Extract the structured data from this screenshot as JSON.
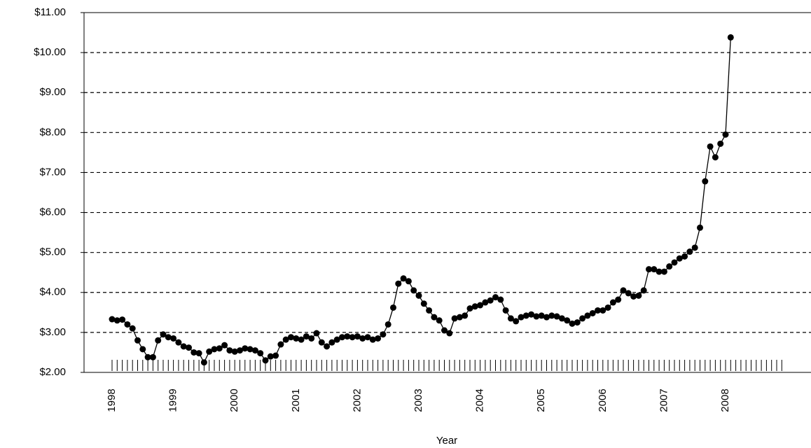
{
  "chart_data": {
    "type": "line",
    "x_label": "Year",
    "categories": [
      "1998",
      null,
      null,
      null,
      null,
      null,
      null,
      null,
      null,
      null,
      null,
      null,
      "1999",
      null,
      null,
      null,
      null,
      null,
      null,
      null,
      null,
      null,
      null,
      null,
      "2000",
      null,
      null,
      null,
      null,
      null,
      null,
      null,
      null,
      null,
      null,
      null,
      "2001",
      null,
      null,
      null,
      null,
      null,
      null,
      null,
      null,
      null,
      null,
      null,
      "2002",
      null,
      null,
      null,
      null,
      null,
      null,
      null,
      null,
      null,
      null,
      null,
      "2003",
      null,
      null,
      null,
      null,
      null,
      null,
      null,
      null,
      null,
      null,
      null,
      "2004",
      null,
      null,
      null,
      null,
      null,
      null,
      null,
      null,
      null,
      null,
      null,
      "2005",
      null,
      null,
      null,
      null,
      null,
      null,
      null,
      null,
      null,
      null,
      null,
      "2006",
      null,
      null,
      null,
      null,
      null,
      null,
      null,
      null,
      null,
      null,
      null,
      "2007",
      null,
      null,
      null,
      null,
      null,
      null,
      null,
      null,
      null,
      null,
      null,
      "2008",
      null,
      null,
      null,
      null,
      null,
      null,
      null,
      null,
      null,
      null,
      null
    ],
    "values": [
      3.33,
      3.3,
      3.32,
      3.2,
      3.1,
      2.8,
      2.58,
      2.38,
      2.38,
      2.8,
      2.95,
      2.88,
      2.85,
      2.75,
      2.65,
      2.62,
      2.5,
      2.48,
      2.25,
      2.52,
      2.58,
      2.6,
      2.68,
      2.55,
      2.52,
      2.55,
      2.6,
      2.58,
      2.55,
      2.48,
      2.3,
      2.4,
      2.42,
      2.7,
      2.82,
      2.88,
      2.85,
      2.82,
      2.9,
      2.85,
      2.98,
      2.75,
      2.65,
      2.75,
      2.82,
      2.88,
      2.9,
      2.88,
      2.9,
      2.85,
      2.88,
      2.82,
      2.85,
      2.95,
      3.2,
      3.62,
      4.22,
      4.35,
      4.28,
      4.05,
      3.92,
      3.72,
      3.55,
      3.38,
      3.3,
      3.05,
      2.98,
      3.35,
      3.38,
      3.42,
      3.6,
      3.65,
      3.68,
      3.75,
      3.8,
      3.88,
      3.82,
      3.55,
      3.35,
      3.28,
      3.38,
      3.42,
      3.45,
      3.4,
      3.42,
      3.38,
      3.42,
      3.4,
      3.35,
      3.3,
      3.22,
      3.25,
      3.35,
      3.42,
      3.48,
      3.55,
      3.55,
      3.62,
      3.75,
      3.82,
      4.05,
      3.98,
      3.9,
      3.92,
      4.05,
      4.58,
      4.58,
      4.52,
      4.52,
      4.65,
      4.75,
      4.85,
      4.9,
      5.02,
      5.12,
      5.62,
      6.78,
      7.65,
      7.38,
      7.72,
      7.95,
      10.38,
      null,
      null,
      null,
      null,
      null,
      null,
      null,
      null,
      null,
      null
    ],
    "color": "#000000",
    "ylim": [
      2,
      11
    ],
    "yticks": [
      {
        "value": 2,
        "label": "$2.00"
      },
      {
        "value": 3,
        "label": "$3.00"
      },
      {
        "value": 4,
        "label": "$4.00"
      },
      {
        "value": 5,
        "label": "$5.00"
      },
      {
        "value": 6,
        "label": "$6.00"
      },
      {
        "value": 7,
        "label": "$7.00"
      },
      {
        "value": 8,
        "label": "$8.00"
      },
      {
        "value": 9,
        "label": "$9.00"
      },
      {
        "value": 10,
        "label": "$10.00"
      },
      {
        "value": 11,
        "label": "$11.00"
      }
    ],
    "grid": true
  }
}
